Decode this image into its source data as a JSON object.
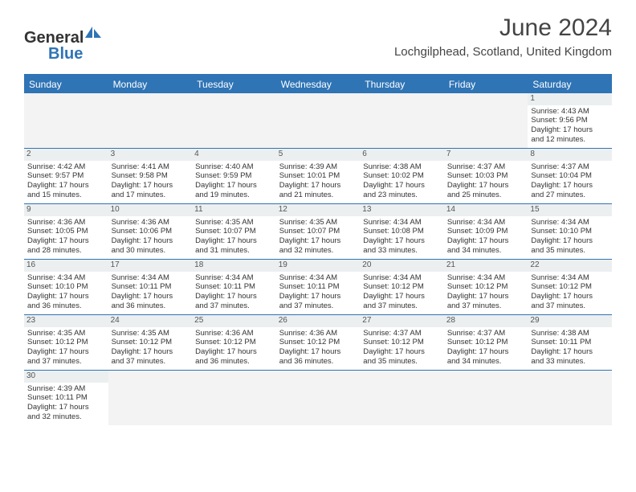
{
  "logo": {
    "text_dark": "General",
    "text_blue": "Blue"
  },
  "title": "June 2024",
  "subtitle": "Lochgilphead, Scotland, United Kingdom",
  "day_names": [
    "Sunday",
    "Monday",
    "Tuesday",
    "Wednesday",
    "Thursday",
    "Friday",
    "Saturday"
  ],
  "colors": {
    "header_bg": "#2f74b5",
    "header_text": "#ffffff",
    "daynum_bg": "#eceff0",
    "border": "#2f74b5"
  },
  "weeks": [
    [
      {
        "empty": true
      },
      {
        "empty": true
      },
      {
        "empty": true
      },
      {
        "empty": true
      },
      {
        "empty": true
      },
      {
        "empty": true
      },
      {
        "n": "1",
        "sr": "Sunrise: 4:43 AM",
        "ss": "Sunset: 9:56 PM",
        "d1": "Daylight: 17 hours",
        "d2": "and 12 minutes."
      }
    ],
    [
      {
        "n": "2",
        "sr": "Sunrise: 4:42 AM",
        "ss": "Sunset: 9:57 PM",
        "d1": "Daylight: 17 hours",
        "d2": "and 15 minutes."
      },
      {
        "n": "3",
        "sr": "Sunrise: 4:41 AM",
        "ss": "Sunset: 9:58 PM",
        "d1": "Daylight: 17 hours",
        "d2": "and 17 minutes."
      },
      {
        "n": "4",
        "sr": "Sunrise: 4:40 AM",
        "ss": "Sunset: 9:59 PM",
        "d1": "Daylight: 17 hours",
        "d2": "and 19 minutes."
      },
      {
        "n": "5",
        "sr": "Sunrise: 4:39 AM",
        "ss": "Sunset: 10:01 PM",
        "d1": "Daylight: 17 hours",
        "d2": "and 21 minutes."
      },
      {
        "n": "6",
        "sr": "Sunrise: 4:38 AM",
        "ss": "Sunset: 10:02 PM",
        "d1": "Daylight: 17 hours",
        "d2": "and 23 minutes."
      },
      {
        "n": "7",
        "sr": "Sunrise: 4:37 AM",
        "ss": "Sunset: 10:03 PM",
        "d1": "Daylight: 17 hours",
        "d2": "and 25 minutes."
      },
      {
        "n": "8",
        "sr": "Sunrise: 4:37 AM",
        "ss": "Sunset: 10:04 PM",
        "d1": "Daylight: 17 hours",
        "d2": "and 27 minutes."
      }
    ],
    [
      {
        "n": "9",
        "sr": "Sunrise: 4:36 AM",
        "ss": "Sunset: 10:05 PM",
        "d1": "Daylight: 17 hours",
        "d2": "and 28 minutes."
      },
      {
        "n": "10",
        "sr": "Sunrise: 4:36 AM",
        "ss": "Sunset: 10:06 PM",
        "d1": "Daylight: 17 hours",
        "d2": "and 30 minutes."
      },
      {
        "n": "11",
        "sr": "Sunrise: 4:35 AM",
        "ss": "Sunset: 10:07 PM",
        "d1": "Daylight: 17 hours",
        "d2": "and 31 minutes."
      },
      {
        "n": "12",
        "sr": "Sunrise: 4:35 AM",
        "ss": "Sunset: 10:07 PM",
        "d1": "Daylight: 17 hours",
        "d2": "and 32 minutes."
      },
      {
        "n": "13",
        "sr": "Sunrise: 4:34 AM",
        "ss": "Sunset: 10:08 PM",
        "d1": "Daylight: 17 hours",
        "d2": "and 33 minutes."
      },
      {
        "n": "14",
        "sr": "Sunrise: 4:34 AM",
        "ss": "Sunset: 10:09 PM",
        "d1": "Daylight: 17 hours",
        "d2": "and 34 minutes."
      },
      {
        "n": "15",
        "sr": "Sunrise: 4:34 AM",
        "ss": "Sunset: 10:10 PM",
        "d1": "Daylight: 17 hours",
        "d2": "and 35 minutes."
      }
    ],
    [
      {
        "n": "16",
        "sr": "Sunrise: 4:34 AM",
        "ss": "Sunset: 10:10 PM",
        "d1": "Daylight: 17 hours",
        "d2": "and 36 minutes."
      },
      {
        "n": "17",
        "sr": "Sunrise: 4:34 AM",
        "ss": "Sunset: 10:11 PM",
        "d1": "Daylight: 17 hours",
        "d2": "and 36 minutes."
      },
      {
        "n": "18",
        "sr": "Sunrise: 4:34 AM",
        "ss": "Sunset: 10:11 PM",
        "d1": "Daylight: 17 hours",
        "d2": "and 37 minutes."
      },
      {
        "n": "19",
        "sr": "Sunrise: 4:34 AM",
        "ss": "Sunset: 10:11 PM",
        "d1": "Daylight: 17 hours",
        "d2": "and 37 minutes."
      },
      {
        "n": "20",
        "sr": "Sunrise: 4:34 AM",
        "ss": "Sunset: 10:12 PM",
        "d1": "Daylight: 17 hours",
        "d2": "and 37 minutes."
      },
      {
        "n": "21",
        "sr": "Sunrise: 4:34 AM",
        "ss": "Sunset: 10:12 PM",
        "d1": "Daylight: 17 hours",
        "d2": "and 37 minutes."
      },
      {
        "n": "22",
        "sr": "Sunrise: 4:34 AM",
        "ss": "Sunset: 10:12 PM",
        "d1": "Daylight: 17 hours",
        "d2": "and 37 minutes."
      }
    ],
    [
      {
        "n": "23",
        "sr": "Sunrise: 4:35 AM",
        "ss": "Sunset: 10:12 PM",
        "d1": "Daylight: 17 hours",
        "d2": "and 37 minutes."
      },
      {
        "n": "24",
        "sr": "Sunrise: 4:35 AM",
        "ss": "Sunset: 10:12 PM",
        "d1": "Daylight: 17 hours",
        "d2": "and 37 minutes."
      },
      {
        "n": "25",
        "sr": "Sunrise: 4:36 AM",
        "ss": "Sunset: 10:12 PM",
        "d1": "Daylight: 17 hours",
        "d2": "and 36 minutes."
      },
      {
        "n": "26",
        "sr": "Sunrise: 4:36 AM",
        "ss": "Sunset: 10:12 PM",
        "d1": "Daylight: 17 hours",
        "d2": "and 36 minutes."
      },
      {
        "n": "27",
        "sr": "Sunrise: 4:37 AM",
        "ss": "Sunset: 10:12 PM",
        "d1": "Daylight: 17 hours",
        "d2": "and 35 minutes."
      },
      {
        "n": "28",
        "sr": "Sunrise: 4:37 AM",
        "ss": "Sunset: 10:12 PM",
        "d1": "Daylight: 17 hours",
        "d2": "and 34 minutes."
      },
      {
        "n": "29",
        "sr": "Sunrise: 4:38 AM",
        "ss": "Sunset: 10:11 PM",
        "d1": "Daylight: 17 hours",
        "d2": "and 33 minutes."
      }
    ],
    [
      {
        "n": "30",
        "sr": "Sunrise: 4:39 AM",
        "ss": "Sunset: 10:11 PM",
        "d1": "Daylight: 17 hours",
        "d2": "and 32 minutes."
      },
      {
        "empty": true
      },
      {
        "empty": true
      },
      {
        "empty": true
      },
      {
        "empty": true
      },
      {
        "empty": true
      },
      {
        "empty": true
      }
    ]
  ]
}
